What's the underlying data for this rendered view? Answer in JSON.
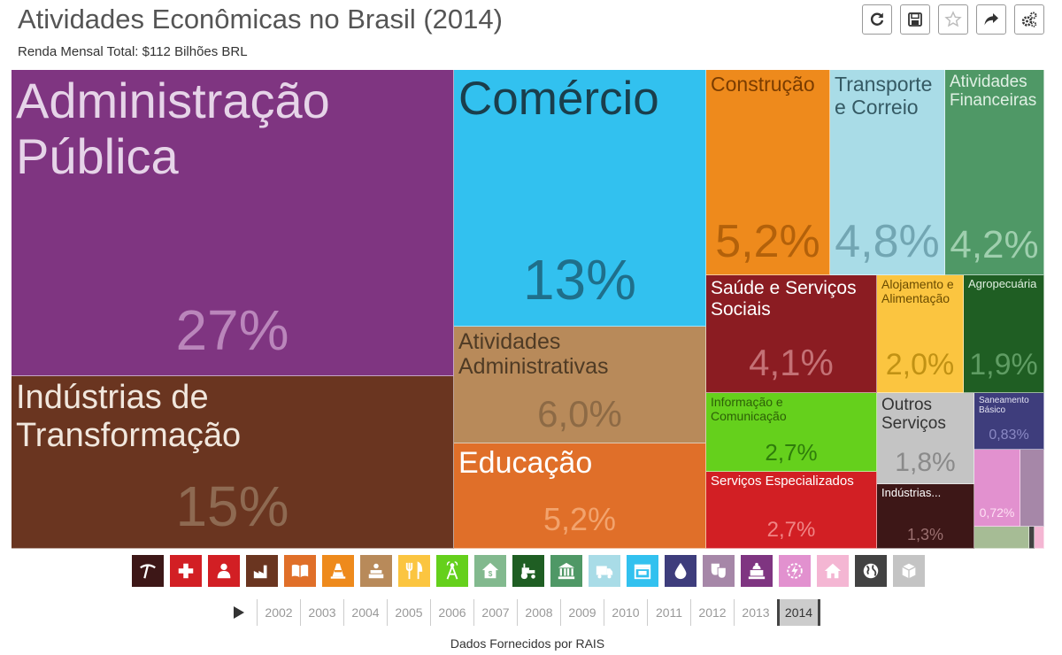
{
  "header": {
    "title": "Atividades Econômicas no Brasil (2014)",
    "subtitle": "Renda Mensal Total: $112 Bilhões BRL"
  },
  "toolbar": [
    {
      "icon": "refresh-icon"
    },
    {
      "icon": "save-icon"
    },
    {
      "icon": "star-icon"
    },
    {
      "icon": "share-icon"
    },
    {
      "icon": "settings-icon"
    }
  ],
  "chart_data": {
    "type": "treemap",
    "title": "Atividades Econômicas no Brasil (2014)",
    "total": "$112 Bilhões BRL",
    "items": [
      {
        "label": "Administração\nPública",
        "value": 27,
        "value_label": "27%",
        "color": "#7f3581"
      },
      {
        "label": "Indústrias de\nTransformação",
        "value": 15,
        "value_label": "15%",
        "color": "#6a3520"
      },
      {
        "label": "Comércio",
        "value": 13,
        "value_label": "13%",
        "color": "#32c1ef"
      },
      {
        "label": "Atividades\nAdministrativas",
        "value": 6.0,
        "value_label": "6,0%",
        "color": "#b88a5a"
      },
      {
        "label": "Educação",
        "value": 5.2,
        "value_label": "5,2%",
        "color": "#e06f29"
      },
      {
        "label": "Construção",
        "value": 5.2,
        "value_label": "5,2%",
        "color": "#ee8a1c"
      },
      {
        "label": "Transporte\ne Correio",
        "value": 4.8,
        "value_label": "4,8%",
        "color": "#a9dce7"
      },
      {
        "label": "Atividades\nFinanceiras",
        "value": 4.2,
        "value_label": "4,2%",
        "color": "#4f9866"
      },
      {
        "label": "Saúde e Serviços\nSociais",
        "value": 4.1,
        "value_label": "4,1%",
        "color": "#8b1c22"
      },
      {
        "label": "Alojamento e\nAlimentação",
        "value": 2.0,
        "value_label": "2,0%",
        "color": "#fbc540"
      },
      {
        "label": "Agropecuária",
        "value": 1.9,
        "value_label": "1,9%",
        "color": "#1f5e23"
      },
      {
        "label": "Informação e\nComunicação",
        "value": 2.7,
        "value_label": "2,7%",
        "color": "#65d01c"
      },
      {
        "label": "Outros\nServiços",
        "value": 1.8,
        "value_label": "1,8%",
        "color": "#c4c4c4"
      },
      {
        "label": "Saneamento\nBásico",
        "value": 0.83,
        "value_label": "0,83%",
        "color": "#3e3d7c"
      },
      {
        "label": "Serviços Especializados",
        "value": 2.7,
        "value_label": "2,7%",
        "color": "#d21f24"
      },
      {
        "label": "Indústrias...",
        "value": 1.3,
        "value_label": "1,3%",
        "color": "#3d1717"
      },
      {
        "label": "",
        "value": 0.72,
        "value_label": "0,72%",
        "color": "#e291cf"
      },
      {
        "label": "",
        "value": 0.4,
        "value_label": "",
        "color": "#a687a8"
      },
      {
        "label": "",
        "value": 0.2,
        "value_label": "",
        "color": "#a6bc95"
      },
      {
        "label": "",
        "value": 0.05,
        "value_label": "",
        "color": "#424242"
      },
      {
        "label": "",
        "value": 0.05,
        "value_label": "",
        "color": "#f4b6d3"
      }
    ]
  },
  "category_icons": [
    {
      "icon": "mining-icon",
      "color": "#3d1717"
    },
    {
      "icon": "health-cross-icon",
      "color": "#d21f24"
    },
    {
      "icon": "professional-services-icon",
      "color": "#d21f24"
    },
    {
      "icon": "factory-icon",
      "color": "#6a3520"
    },
    {
      "icon": "book-icon",
      "color": "#e06f29"
    },
    {
      "icon": "traffic-cone-icon",
      "color": "#ee8a1c"
    },
    {
      "icon": "administrative-desk-icon",
      "color": "#b88a5a"
    },
    {
      "icon": "restaurant-icon",
      "color": "#fbc540"
    },
    {
      "icon": "antenna-icon",
      "color": "#65d01c"
    },
    {
      "icon": "money-house-icon",
      "color": "#82b98e"
    },
    {
      "icon": "tractor-icon",
      "color": "#1f5e23"
    },
    {
      "icon": "bank-icon",
      "color": "#4f9866"
    },
    {
      "icon": "truck-icon",
      "color": "#a9dce7"
    },
    {
      "icon": "store-icon",
      "color": "#32c1ef"
    },
    {
      "icon": "water-drop-icon",
      "color": "#3e3d7c"
    },
    {
      "icon": "theater-masks-icon",
      "color": "#a687a8"
    },
    {
      "icon": "public-building-icon",
      "color": "#7f3581"
    },
    {
      "icon": "energy-icon",
      "color": "#e291cf"
    },
    {
      "icon": "home-icon",
      "color": "#f4b6d3"
    },
    {
      "icon": "globe-icon",
      "color": "#424242"
    },
    {
      "icon": "other-box-icon",
      "color": "#c4c4c4"
    }
  ],
  "timeline": {
    "years": [
      "2002",
      "2003",
      "2004",
      "2005",
      "2006",
      "2007",
      "2008",
      "2009",
      "2010",
      "2011",
      "2012",
      "2013",
      "2014"
    ],
    "selected": "2014"
  },
  "footer": {
    "source": "Dados Fornecidos por RAIS"
  }
}
